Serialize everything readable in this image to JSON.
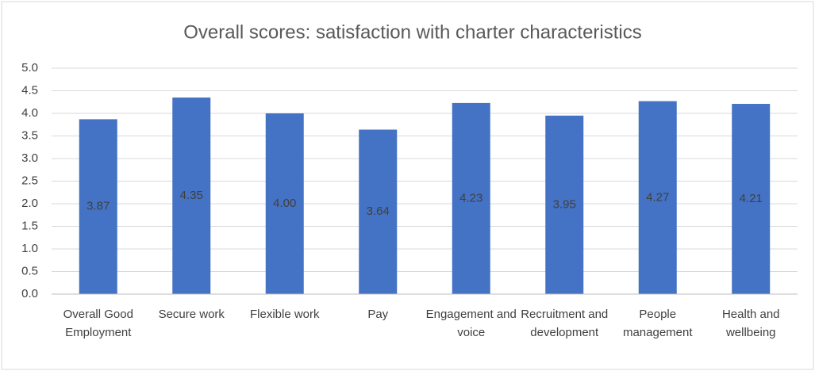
{
  "chart_data": {
    "type": "bar",
    "title": "Overall scores: satisfaction with charter characteristics",
    "categories": [
      "Overall Good Employment",
      "Secure work",
      "Flexible work",
      "Pay",
      "Engagement and voice",
      "Recruitment and development",
      "People management",
      "Health and wellbeing"
    ],
    "values": [
      3.87,
      4.35,
      4.0,
      3.64,
      4.23,
      3.95,
      4.27,
      4.21
    ],
    "value_labels": [
      "3.87",
      "4.35",
      "4.00",
      "3.64",
      "4.23",
      "3.95",
      "4.27",
      "4.21"
    ],
    "color": "#4472c4",
    "ylim": [
      0,
      5
    ],
    "yticks": [
      {
        "value": 0,
        "label": "0.0"
      },
      {
        "value": 0.5,
        "label": "0.5"
      },
      {
        "value": 1,
        "label": "1.0"
      },
      {
        "value": 1.5,
        "label": "1.5"
      },
      {
        "value": 2,
        "label": "2.0"
      },
      {
        "value": 2.5,
        "label": "2.5"
      },
      {
        "value": 3,
        "label": "3.0"
      },
      {
        "value": 3.5,
        "label": "3.5"
      },
      {
        "value": 4,
        "label": "4.0"
      },
      {
        "value": 4.5,
        "label": "4.5"
      },
      {
        "value": 5,
        "label": "5.0"
      }
    ],
    "grid": true
  }
}
